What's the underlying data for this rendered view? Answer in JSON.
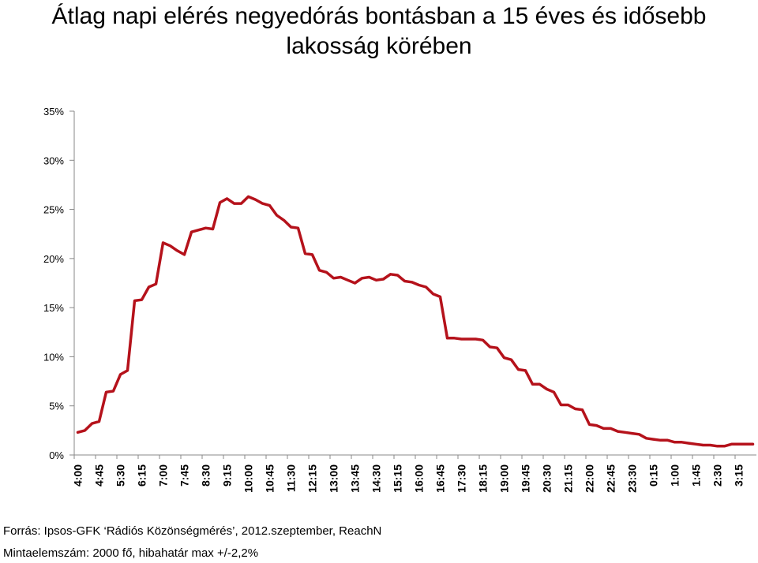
{
  "chart_data": {
    "type": "line",
    "title_line1": "Átlag napi elérés negyedórás bontásban a 15 éves és idősebb",
    "title_line2": "lakosság körében",
    "y_ticks": [
      "0%",
      "5%",
      "10%",
      "15%",
      "20%",
      "25%",
      "30%",
      "35%"
    ],
    "ylim": [
      0,
      35
    ],
    "y_unit": "%",
    "grid": false,
    "legend": "none",
    "line_color": "#b5121b",
    "x_labels": [
      "4:00",
      "4:45",
      "5:30",
      "6:15",
      "7:00",
      "7:45",
      "8:30",
      "9:15",
      "10:00",
      "10:45",
      "11:30",
      "12:15",
      "13:00",
      "13:45",
      "14:30",
      "15:15",
      "16:00",
      "16:45",
      "17:30",
      "18:15",
      "19:00",
      "19:45",
      "20:30",
      "21:15",
      "22:00",
      "22:45",
      "23:30",
      "0:15",
      "1:00",
      "1:45",
      "2:30",
      "3:15"
    ],
    "x": [
      "4:00",
      "4:15",
      "4:30",
      "4:45",
      "5:00",
      "5:15",
      "5:30",
      "5:45",
      "6:00",
      "6:15",
      "6:30",
      "6:45",
      "7:00",
      "7:15",
      "7:30",
      "7:45",
      "8:00",
      "8:15",
      "8:30",
      "8:45",
      "9:00",
      "9:15",
      "9:30",
      "9:45",
      "10:00",
      "10:15",
      "10:30",
      "10:45",
      "11:00",
      "11:15",
      "11:30",
      "11:45",
      "12:00",
      "12:15",
      "12:30",
      "12:45",
      "13:00",
      "13:15",
      "13:30",
      "13:45",
      "14:00",
      "14:15",
      "14:30",
      "14:45",
      "15:00",
      "15:15",
      "15:30",
      "15:45",
      "16:00",
      "16:15",
      "16:30",
      "16:45",
      "17:00",
      "17:15",
      "17:30",
      "17:45",
      "18:00",
      "18:15",
      "18:30",
      "18:45",
      "19:00",
      "19:15",
      "19:30",
      "19:45",
      "20:00",
      "20:15",
      "20:30",
      "20:45",
      "21:00",
      "21:15",
      "21:30",
      "21:45",
      "22:00",
      "22:15",
      "22:30",
      "22:45",
      "23:00",
      "23:15",
      "23:30",
      "23:45",
      "0:00",
      "0:15",
      "0:30",
      "0:45",
      "1:00",
      "1:15",
      "1:30",
      "1:45",
      "2:00",
      "2:15",
      "2:30",
      "2:45",
      "3:00",
      "3:15",
      "3:30",
      "3:45"
    ],
    "values": [
      2.3,
      2.5,
      3.2,
      3.4,
      6.4,
      6.5,
      8.2,
      8.6,
      15.7,
      15.8,
      17.1,
      17.4,
      21.6,
      21.3,
      20.8,
      20.4,
      22.7,
      22.9,
      23.1,
      23.0,
      25.7,
      26.1,
      25.6,
      25.6,
      26.3,
      26.0,
      25.6,
      25.4,
      24.4,
      23.9,
      23.2,
      23.1,
      20.5,
      20.4,
      18.8,
      18.6,
      18.0,
      18.1,
      17.8,
      17.5,
      18.0,
      18.1,
      17.8,
      17.9,
      18.4,
      18.3,
      17.7,
      17.6,
      17.3,
      17.1,
      16.4,
      16.1,
      11.9,
      11.9,
      11.8,
      11.8,
      11.8,
      11.7,
      11.0,
      10.9,
      9.9,
      9.7,
      8.7,
      8.6,
      7.2,
      7.2,
      6.7,
      6.4,
      5.1,
      5.1,
      4.7,
      4.6,
      3.1,
      3.0,
      2.7,
      2.7,
      2.4,
      2.3,
      2.2,
      2.1,
      1.7,
      1.6,
      1.5,
      1.5,
      1.3,
      1.3,
      1.2,
      1.1,
      1.0,
      1.0,
      0.9,
      0.9,
      1.1,
      1.1,
      1.1,
      1.1
    ]
  },
  "footer": {
    "source": "Forrás: Ipsos-GFK ‘Rádiós Közönségmérés’, 2012.szeptember, ReachN",
    "sample": "Mintaelemszám: 2000 fő, hibahatár max +/-2,2%"
  }
}
